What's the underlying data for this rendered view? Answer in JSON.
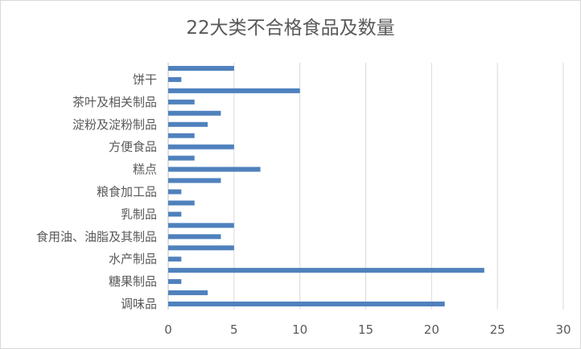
{
  "chart_data": {
    "type": "bar",
    "orientation": "horizontal",
    "title": "22大类不合格食品及数量",
    "xlabel": "",
    "ylabel": "",
    "xlim": [
      0,
      30
    ],
    "x_ticks": [
      0,
      5,
      10,
      15,
      20,
      25,
      30
    ],
    "grid": "vertical",
    "legend": "none",
    "bar_color": "#4f81bd",
    "categories": [
      "调味品",
      "",
      "糖果制品",
      "",
      "水产制品",
      "",
      "食用油、油脂及其制品",
      "",
      "乳制品",
      "",
      "粮食加工品",
      "",
      "糕点",
      "",
      "方便食品",
      "",
      "淀粉及淀粉制品",
      "",
      "茶叶及相关制品",
      "",
      "饼干",
      ""
    ],
    "values": [
      21,
      3,
      1,
      24,
      1,
      5,
      4,
      5,
      1,
      2,
      1,
      4,
      7,
      2,
      5,
      2,
      3,
      4,
      2,
      10,
      1,
      5
    ]
  }
}
